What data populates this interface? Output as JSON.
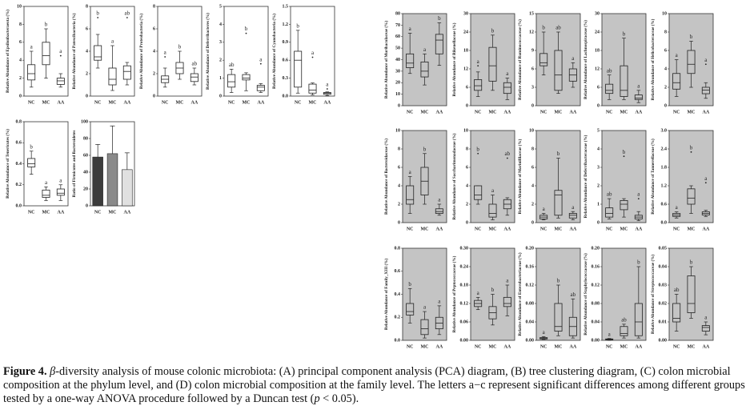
{
  "chart_data": [
    {
      "type": "box",
      "ylabel": "Relative Abundance of Epsilonbacteraeota (%)",
      "background": "#ffffff",
      "categories": [
        "NC",
        "MC",
        "AA"
      ],
      "ylim": [
        0,
        10
      ],
      "yticks": [
        0,
        2,
        4,
        6,
        8,
        10
      ],
      "stats": [
        [
          1,
          1.8,
          2.5,
          3.5,
          5
        ],
        [
          2,
          3.5,
          4.5,
          6,
          7.5
        ],
        [
          1,
          1.3,
          1.7,
          2,
          2.5
        ]
      ],
      "outliers": [
        [],
        [],
        [
          4.5
        ]
      ],
      "letters": [
        "a",
        "b",
        "a"
      ]
    },
    {
      "type": "box",
      "ylabel": "Relative Abundance of Patescibacteria (%)",
      "background": "#ffffff",
      "categories": [
        "NC",
        "MC",
        "AA"
      ],
      "ylim": [
        0,
        8
      ],
      "yticks": [
        0,
        2,
        4,
        6,
        8
      ],
      "stats": [
        [
          2.5,
          3.2,
          3.5,
          4.5,
          5.5
        ],
        [
          0.5,
          1,
          1.5,
          2.5,
          4.5
        ],
        [
          1,
          1.5,
          2.2,
          2.7,
          3
        ]
      ],
      "outliers": [
        [
          7
        ],
        [],
        [
          7
        ]
      ],
      "letters": [
        "b",
        "a",
        "ab"
      ]
    },
    {
      "type": "box",
      "ylabel": "Relative Abundance of Proteobacteria (%)",
      "background": "#ffffff",
      "categories": [
        "NC",
        "MC",
        "AA"
      ],
      "ylim": [
        0,
        8
      ],
      "yticks": [
        0,
        2,
        4,
        6,
        8
      ],
      "stats": [
        [
          0.8,
          1.2,
          1.5,
          1.8,
          2.5
        ],
        [
          1.5,
          2,
          2.5,
          3,
          4
        ],
        [
          1,
          1.3,
          1.7,
          2,
          2.5
        ]
      ],
      "outliers": [
        [
          3.5
        ],
        [],
        []
      ],
      "letters": [
        "a",
        "b",
        "ab"
      ]
    },
    {
      "type": "box",
      "ylabel": "Relative Abundance of Deferribacteres (%)",
      "background": "#ffffff",
      "categories": [
        "NC",
        "MC",
        "AA"
      ],
      "ylim": [
        0,
        5
      ],
      "yticks": [
        0,
        1,
        2,
        3,
        4,
        5
      ],
      "stats": [
        [
          0.2,
          0.5,
          0.8,
          1.2,
          1.5
        ],
        [
          0.3,
          0.9,
          1,
          1.2,
          1.3
        ],
        [
          0.2,
          0.3,
          0.5,
          0.6,
          0.7
        ]
      ],
      "outliers": [
        [],
        [
          3.5
        ],
        [
          1.8
        ]
      ],
      "letters": [
        "ab",
        "b",
        "a"
      ]
    },
    {
      "type": "box",
      "ylabel": "Relative Abundance of Cyanobacteria (%)",
      "background": "#ffffff",
      "categories": [
        "NC",
        "MC",
        "AA"
      ],
      "ylim": [
        0,
        1.5
      ],
      "yticks": [
        {
          "value": 0,
          "label": "0.0"
        },
        0.3,
        0.6,
        0.9,
        1.2,
        1.5
      ],
      "stats": [
        [
          0.05,
          0.15,
          0.6,
          0.75,
          1.1
        ],
        [
          0.02,
          0.05,
          0.1,
          0.2,
          0.22
        ],
        [
          0.01,
          0.03,
          0.05,
          0.06,
          0.07
        ]
      ],
      "outliers": [
        [],
        [
          0.65
        ],
        [
          0.12
        ]
      ],
      "letters": [
        "b",
        "a",
        "a"
      ]
    },
    {
      "type": "box",
      "ylabel": "Relative Abundance of Tenericutes (%)",
      "background": "#ffffff",
      "categories": [
        "NC",
        "MC",
        "AA"
      ],
      "ylim": [
        0,
        0.8
      ],
      "yticks": [
        {
          "value": 0,
          "label": "0.0"
        },
        0.2,
        0.4,
        0.6,
        0.8
      ],
      "stats": [
        [
          0.3,
          0.37,
          0.4,
          0.45,
          0.52
        ],
        [
          0.05,
          0.08,
          0.1,
          0.15,
          0.18
        ],
        [
          0.05,
          0.1,
          0.12,
          0.16,
          0.2
        ]
      ],
      "outliers": [
        [],
        [],
        []
      ],
      "letters": [
        "b",
        "a",
        "a"
      ]
    },
    {
      "type": "bar",
      "ylabel": "Ratio of Firmicutes and Bacteroidetes",
      "background": "#ffffff",
      "categories": [
        "NC",
        "MC",
        "AA"
      ],
      "ylim": [
        0,
        100
      ],
      "yticks": [
        0,
        20,
        40,
        60,
        80,
        100
      ],
      "values": [
        58,
        62,
        43
      ],
      "errors": [
        15,
        33,
        20
      ],
      "colors": [
        "#3c3c3c",
        "#8a8a8a",
        "#e0e0e0"
      ]
    },
    {
      "type": "box",
      "ylabel": "Relative Abundance of Muribaculaceae (%)",
      "background": "#c4c4c4",
      "categories": [
        "NC",
        "MC",
        "AA"
      ],
      "ylim": [
        0,
        80
      ],
      "yticks": [
        0,
        10,
        20,
        30,
        40,
        50,
        60,
        70,
        80
      ],
      "stats": [
        [
          28,
          33,
          37,
          45,
          63
        ],
        [
          18,
          25,
          30,
          38,
          45
        ],
        [
          35,
          45,
          57,
          62,
          72
        ]
      ],
      "outliers": [
        [],
        [],
        []
      ],
      "letters": [
        "a",
        "a",
        "b"
      ]
    },
    {
      "type": "box",
      "ylabel": "Relative Abundance of Rikenellaceae (%)",
      "background": "#c4c4c4",
      "categories": [
        "NC",
        "MC",
        "AA"
      ],
      "ylim": [
        0,
        30
      ],
      "yticks": [
        0,
        6,
        12,
        18,
        24,
        30
      ],
      "stats": [
        [
          3,
          5,
          6.5,
          8.5,
          11
        ],
        [
          5,
          8,
          13,
          19,
          23
        ],
        [
          2,
          4,
          6,
          7.5,
          9
        ]
      ],
      "outliers": [
        [
          13
        ],
        [],
        []
      ],
      "letters": [
        "a",
        "b",
        "a"
      ]
    },
    {
      "type": "box",
      "ylabel": "Relative Abundance of Ruminococcaceae (%)",
      "background": "#c4c4c4",
      "categories": [
        "NC",
        "MC",
        "AA"
      ],
      "ylim": [
        0,
        15
      ],
      "yticks": [
        0,
        3,
        6,
        9,
        12,
        15
      ],
      "stats": [
        [
          5,
          6.5,
          7,
          8.5,
          12
        ],
        [
          2,
          2.5,
          5,
          9,
          12
        ],
        [
          3,
          4,
          5,
          6,
          7
        ]
      ],
      "outliers": [
        [],
        [],
        []
      ],
      "letters": [
        "b",
        "ab",
        "a"
      ]
    },
    {
      "type": "box",
      "ylabel": "Relative Abundance of Lachnospiraceae (%)",
      "background": "#c4c4c4",
      "categories": [
        "NC",
        "MC",
        "AA"
      ],
      "ylim": [
        0,
        30
      ],
      "yticks": [
        0,
        6,
        12,
        18,
        24,
        30
      ],
      "stats": [
        [
          2,
          4,
          5,
          7,
          10
        ],
        [
          2,
          3,
          5,
          13,
          22
        ],
        [
          1,
          2,
          2.5,
          3.5,
          5
        ]
      ],
      "outliers": [
        [],
        [],
        []
      ],
      "letters": [
        "ab",
        "b",
        "a"
      ]
    },
    {
      "type": "box",
      "ylabel": "Relative Abundance of Helicobacteraceae (%)",
      "background": "#c4c4c4",
      "categories": [
        "NC",
        "MC",
        "AA"
      ],
      "ylim": [
        0,
        10
      ],
      "yticks": [
        0,
        2,
        4,
        6,
        8,
        10
      ],
      "stats": [
        [
          1,
          1.8,
          2.5,
          3.5,
          5
        ],
        [
          2,
          3.5,
          4.5,
          6,
          7
        ],
        [
          0.8,
          1.3,
          1.7,
          2,
          2.5
        ]
      ],
      "outliers": [
        [],
        [],
        [
          4.5
        ]
      ],
      "letters": [
        "a",
        "b",
        "a"
      ]
    },
    {
      "type": "box",
      "ylabel": "Relative Abundance of Bacteroidaceae (%)",
      "background": "#c4c4c4",
      "categories": [
        "NC",
        "MC",
        "AA"
      ],
      "ylim": [
        0,
        10
      ],
      "yticks": [
        0,
        2,
        4,
        6,
        8,
        10
      ],
      "stats": [
        [
          1,
          2,
          2.5,
          4,
          5
        ],
        [
          2,
          3,
          4.5,
          6,
          7.5
        ],
        [
          0.8,
          1,
          1.2,
          1.5,
          2
        ]
      ],
      "outliers": [
        [],
        [],
        []
      ],
      "letters": [
        "a",
        "b",
        "a"
      ]
    },
    {
      "type": "box",
      "ylabel": "Relative Abundance of Saccharimonadaceae (%)",
      "background": "#c4c4c4",
      "categories": [
        "NC",
        "MC",
        "AA"
      ],
      "ylim": [
        0,
        10
      ],
      "yticks": [
        0,
        2,
        4,
        6,
        8,
        10
      ],
      "stats": [
        [
          2,
          2.5,
          3,
          4,
          4
        ],
        [
          0.3,
          0.6,
          1,
          2,
          3
        ],
        [
          0.8,
          1.5,
          2,
          2.5,
          2.7
        ]
      ],
      "outliers": [
        [
          7.5
        ],
        [],
        [
          7
        ]
      ],
      "letters": [
        "b",
        "a",
        "ab"
      ]
    },
    {
      "type": "box",
      "ylabel": "Relative Abundance of Marinifilaceae (%)",
      "background": "#c4c4c4",
      "categories": [
        "NC",
        "MC",
        "AA"
      ],
      "ylim": [
        0,
        10
      ],
      "yticks": [
        0,
        2,
        4,
        6,
        8,
        10
      ],
      "stats": [
        [
          0.3,
          0.4,
          0.6,
          0.8,
          1
        ],
        [
          0.5,
          0.8,
          3,
          3.5,
          7
        ],
        [
          0.3,
          0.5,
          0.8,
          1,
          1.2
        ]
      ],
      "outliers": [
        [],
        [],
        []
      ],
      "letters": [
        "a",
        "b",
        "a"
      ]
    },
    {
      "type": "box",
      "ylabel": "Relative Abundance of Deferribacteraceae (%)",
      "background": "#c4c4c4",
      "categories": [
        "NC",
        "MC",
        "AA"
      ],
      "ylim": [
        0,
        5
      ],
      "yticks": [
        0,
        1,
        2,
        3,
        4,
        5
      ],
      "stats": [
        [
          0.2,
          0.3,
          0.5,
          0.8,
          1.3
        ],
        [
          0.3,
          0.7,
          1,
          1.2,
          1.3
        ],
        [
          0.1,
          0.2,
          0.3,
          0.4,
          0.6
        ]
      ],
      "outliers": [
        [],
        [
          3.6
        ],
        [
          1.3
        ]
      ],
      "letters": [
        "ab",
        "b",
        "a"
      ]
    },
    {
      "type": "box",
      "ylabel": "Relative Abundance of Tannerellaceae (%)",
      "background": "#c4c4c4",
      "categories": [
        "NC",
        "MC",
        "AA"
      ],
      "ylim": [
        0,
        3
      ],
      "yticks": [
        {
          "value": 0,
          "label": "0.0"
        },
        0.6,
        1.2,
        1.8,
        2.4,
        {
          "value": 3,
          "label": "3.0"
        }
      ],
      "stats": [
        [
          0.15,
          0.2,
          0.25,
          0.3,
          0.35
        ],
        [
          0.3,
          0.6,
          0.8,
          1.1,
          1.2
        ],
        [
          0.2,
          0.25,
          0.3,
          0.35,
          0.4
        ]
      ],
      "outliers": [
        [],
        [
          2.3
        ],
        [
          1.3
        ]
      ],
      "letters": [
        "a",
        "b",
        "a"
      ]
    },
    {
      "type": "box",
      "ylabel": "Relative Abundance of Family_XIII (%)",
      "background": "#c4c4c4",
      "categories": [
        "NC",
        "MC",
        "AA"
      ],
      "ylim": [
        0,
        0.8
      ],
      "yticks": [
        {
          "value": 0,
          "label": "0.0"
        },
        0.2,
        0.4,
        0.6,
        0.8
      ],
      "stats": [
        [
          0.15,
          0.22,
          0.25,
          0.32,
          0.45
        ],
        [
          0.02,
          0.05,
          0.1,
          0.18,
          0.25
        ],
        [
          0.05,
          0.1,
          0.15,
          0.2,
          0.3
        ]
      ],
      "outliers": [
        [],
        [],
        []
      ],
      "letters": [
        "b",
        "a",
        "a"
      ]
    },
    {
      "type": "box",
      "ylabel": "Relative Abundance of Peptococcaceae (%)",
      "background": "#c4c4c4",
      "categories": [
        "NC",
        "MC",
        "AA"
      ],
      "ylim": [
        0,
        0.3
      ],
      "yticks": [
        {
          "value": 0,
          "label": "0.00"
        },
        {
          "value": 0.06,
          "label": "0.06"
        },
        {
          "value": 0.12,
          "label": "0.12"
        },
        {
          "value": 0.18,
          "label": "0.18"
        },
        {
          "value": 0.24,
          "label": "0.24"
        },
        {
          "value": 0.3,
          "label": "0.30"
        }
      ],
      "stats": [
        [
          0.1,
          0.11,
          0.12,
          0.13,
          0.14
        ],
        [
          0.05,
          0.07,
          0.09,
          0.11,
          0.15
        ],
        [
          0.08,
          0.11,
          0.12,
          0.14,
          0.18
        ]
      ],
      "outliers": [
        [],
        [],
        []
      ],
      "letters": [
        "a",
        "b",
        "a"
      ]
    },
    {
      "type": "box",
      "ylabel": "Relative Abundance of Enterobacteriaceae (%)",
      "background": "#c4c4c4",
      "categories": [
        "NC",
        "MC",
        "AA"
      ],
      "ylim": [
        0,
        0.2
      ],
      "yticks": [
        {
          "value": 0,
          "label": "0.00"
        },
        {
          "value": 0.04,
          "label": "0.04"
        },
        {
          "value": 0.08,
          "label": "0.08"
        },
        {
          "value": 0.12,
          "label": "0.12"
        },
        {
          "value": 0.16,
          "label": "0.16"
        },
        {
          "value": 0.2,
          "label": "0.20"
        }
      ],
      "stats": [
        [
          0.002,
          0.003,
          0.004,
          0.006,
          0.008
        ],
        [
          0.01,
          0.02,
          0.03,
          0.08,
          0.12
        ],
        [
          0.005,
          0.01,
          0.03,
          0.05,
          0.09
        ]
      ],
      "outliers": [
        [],
        [],
        []
      ],
      "letters": [
        "a",
        "b",
        "ab"
      ]
    },
    {
      "type": "box",
      "ylabel": "Relative Abundance of Staphylococcaceae (%)",
      "background": "#c4c4c4",
      "categories": [
        "NC",
        "MC",
        "AA"
      ],
      "ylim": [
        0,
        0.2
      ],
      "yticks": [
        {
          "value": 0,
          "label": "0.00"
        },
        {
          "value": 0.04,
          "label": "0.04"
        },
        {
          "value": 0.08,
          "label": "0.08"
        },
        {
          "value": 0.12,
          "label": "0.12"
        },
        {
          "value": 0.16,
          "label": "0.16"
        },
        {
          "value": 0.2,
          "label": "0.20"
        }
      ],
      "stats": [
        [
          0,
          0.001,
          0.002,
          0.003,
          0.004
        ],
        [
          0.005,
          0.01,
          0.015,
          0.03,
          0.035
        ],
        [
          0.005,
          0.01,
          0.04,
          0.08,
          0.16
        ]
      ],
      "outliers": [
        [],
        [],
        []
      ],
      "letters": [
        "a",
        "ab",
        "b"
      ]
    },
    {
      "type": "box",
      "ylabel": "Relative Abundance of Streptococcaceae (%)",
      "background": "#c4c4c4",
      "categories": [
        "NC",
        "MC",
        "AA"
      ],
      "ylim": [
        0,
        0.05
      ],
      "yticks": [
        {
          "value": 0,
          "label": "0.00"
        },
        0.01,
        0.02,
        0.03,
        0.04,
        0.05
      ],
      "stats": [
        [
          0.005,
          0.01,
          0.012,
          0.02,
          0.025
        ],
        [
          0.012,
          0.015,
          0.02,
          0.035,
          0.04
        ],
        [
          0.003,
          0.005,
          0.007,
          0.008,
          0.01
        ]
      ],
      "outliers": [
        [],
        [],
        []
      ],
      "letters": [
        "ab",
        "b",
        "a"
      ]
    }
  ],
  "caption": {
    "label": "Figure 4.",
    "segments": [
      {
        "text": "β",
        "italic": true
      },
      {
        "text": "-diversity analysis of mouse colonic microbiota: (A) principal component analysis (PCA) diagram, (B) tree clustering diagram, (C) colon microbial composition at the phylum level, and (D) colon microbial composition at the family level. The letters a−c represent significant differences among different groups tested by a one-way ANOVA procedure followed by a Duncan test (",
        "italic": false
      },
      {
        "text": "p",
        "italic": true
      },
      {
        "text": " < 0.05).",
        "italic": false
      }
    ]
  }
}
